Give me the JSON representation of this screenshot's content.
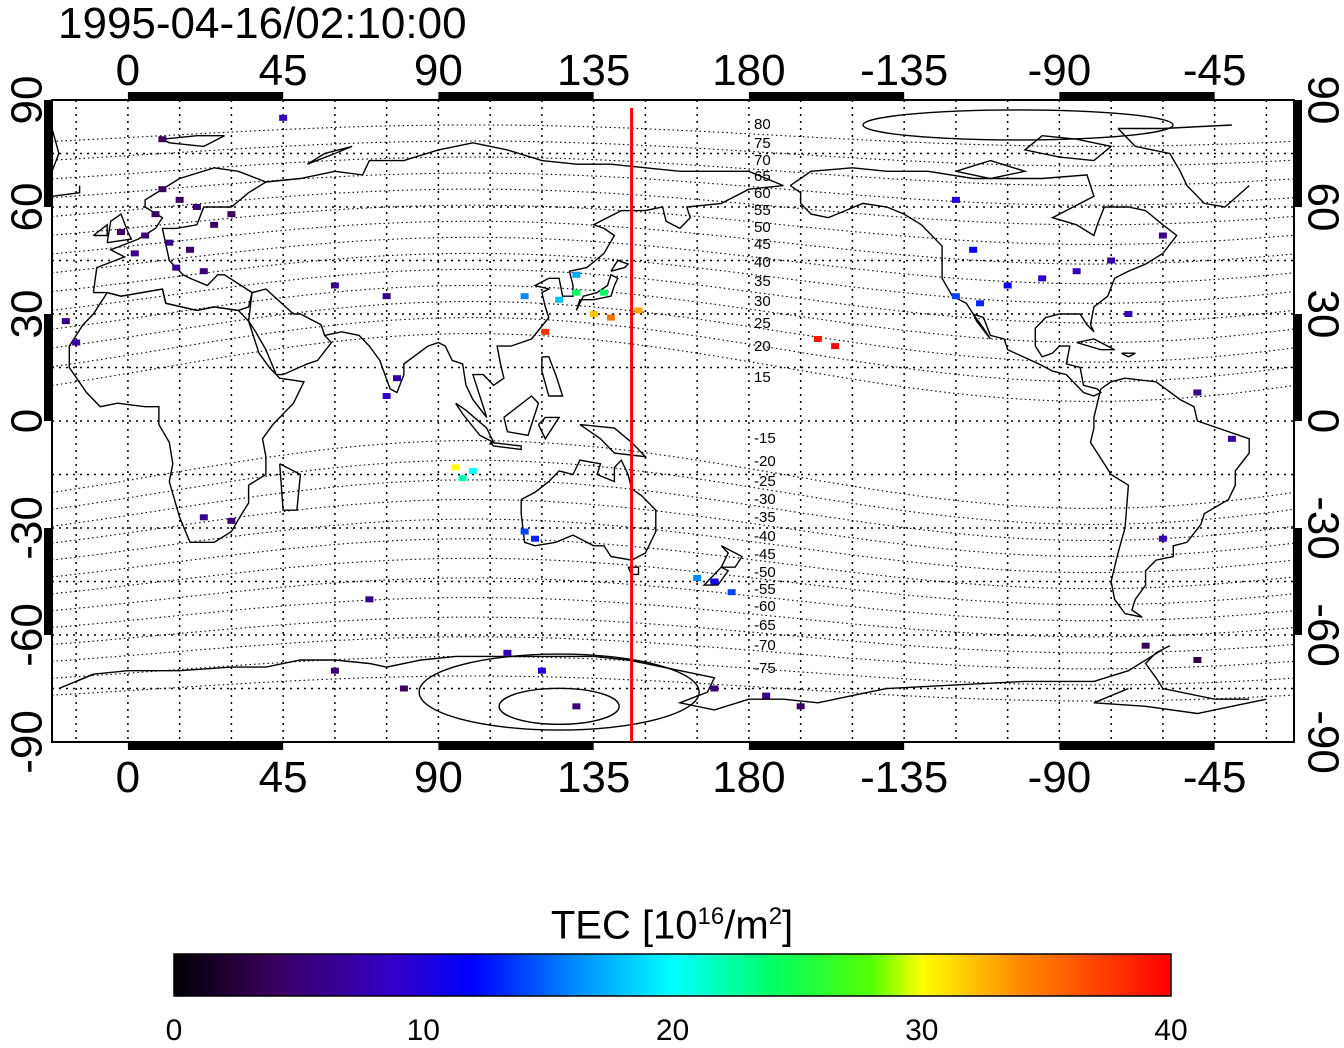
{
  "timestamp": "1995-04-16/02:10:00",
  "map": {
    "lon_ticks_top": [
      "0",
      "45",
      "90",
      "135",
      "180",
      "-135",
      "-90",
      "-45"
    ],
    "lon_ticks_bottom": [
      "0",
      "45",
      "90",
      "135",
      "180",
      "-135",
      "-90",
      "-45"
    ],
    "lat_ticks_left": [
      "90",
      "60",
      "30",
      "0",
      "-30",
      "-60",
      "-90"
    ],
    "lat_ticks_right": [
      "90",
      "60",
      "30",
      "0",
      "-30",
      "-60",
      "-90"
    ],
    "contour_labels_north": [
      "80",
      "75",
      "70",
      "65",
      "60",
      "55",
      "50",
      "45",
      "40",
      "35",
      "30",
      "25",
      "20",
      "15"
    ],
    "contour_labels_south": [
      "-15",
      "-20",
      "-25",
      "-30",
      "-35",
      "-40",
      "-45",
      "-50",
      "-55",
      "-60",
      "-65",
      "-70",
      "-75"
    ],
    "meridian_line_color": "#ff0000",
    "meridian_lon": 146
  },
  "colorbar": {
    "title_prefix": "TEC  [10",
    "title_sup1": "16",
    "title_mid": "/m",
    "title_sup2": "2",
    "title_suffix": "]",
    "ticks": [
      "0",
      "10",
      "20",
      "30",
      "40"
    ],
    "range": [
      0,
      40
    ]
  },
  "chart_data": {
    "type": "scatter",
    "title": "1995-04-16/02:10:00",
    "xlabel": "",
    "ylabel": "",
    "xlim": [
      -22,
      338
    ],
    "ylim": [
      -90,
      90
    ],
    "value_label": "TEC [10^16/m^2]",
    "points": [
      {
        "lon": 10,
        "lat": 65,
        "tec": 4
      },
      {
        "lon": 15,
        "lat": 62,
        "tec": 4
      },
      {
        "lon": 20,
        "lat": 60,
        "tec": 5
      },
      {
        "lon": 8,
        "lat": 58,
        "tec": 4
      },
      {
        "lon": 5,
        "lat": 52,
        "tec": 5
      },
      {
        "lon": 12,
        "lat": 50,
        "tec": 6
      },
      {
        "lon": 18,
        "lat": 48,
        "tec": 5
      },
      {
        "lon": 25,
        "lat": 55,
        "tec": 4
      },
      {
        "lon": -2,
        "lat": 53,
        "tec": 5
      },
      {
        "lon": 2,
        "lat": 47,
        "tec": 6
      },
      {
        "lon": 14,
        "lat": 43,
        "tec": 6
      },
      {
        "lon": 22,
        "lat": 42,
        "tec": 5
      },
      {
        "lon": 30,
        "lat": 58,
        "tec": 4
      },
      {
        "lon": -18,
        "lat": 28,
        "tec": 6
      },
      {
        "lon": -15,
        "lat": 22,
        "tec": 7
      },
      {
        "lon": 10,
        "lat": 79,
        "tec": 4
      },
      {
        "lon": 45,
        "lat": 85,
        "tec": 8
      },
      {
        "lon": 60,
        "lat": 38,
        "tec": 6
      },
      {
        "lon": 75,
        "lat": 35,
        "tec": 6
      },
      {
        "lon": 78,
        "lat": 12,
        "tec": 7
      },
      {
        "lon": 75,
        "lat": 7,
        "tec": 9
      },
      {
        "lon": 115,
        "lat": 35,
        "tec": 16
      },
      {
        "lon": 125,
        "lat": 34,
        "tec": 18
      },
      {
        "lon": 130,
        "lat": 36,
        "tec": 24
      },
      {
        "lon": 138,
        "lat": 36,
        "tec": 24
      },
      {
        "lon": 135,
        "lat": 30,
        "tec": 32
      },
      {
        "lon": 140,
        "lat": 29,
        "tec": 35
      },
      {
        "lon": 148,
        "lat": 31,
        "tec": 33
      },
      {
        "lon": 121,
        "lat": 25,
        "tec": 38
      },
      {
        "lon": 130,
        "lat": 41,
        "tec": 17
      },
      {
        "lon": 95,
        "lat": -13,
        "tec": 30
      },
      {
        "lon": 97,
        "lat": -16,
        "tec": 22
      },
      {
        "lon": 100,
        "lat": -14,
        "tec": 20
      },
      {
        "lon": 115,
        "lat": -31,
        "tec": 14
      },
      {
        "lon": 118,
        "lat": -33,
        "tec": 13
      },
      {
        "lon": 170,
        "lat": -45,
        "tec": 11
      },
      {
        "lon": 175,
        "lat": -48,
        "tec": 14
      },
      {
        "lon": 165,
        "lat": -44,
        "tec": 16
      },
      {
        "lon": 200,
        "lat": 23,
        "tec": 39
      },
      {
        "lon": 205,
        "lat": 21,
        "tec": 40
      },
      {
        "lon": 240,
        "lat": 62,
        "tec": 10
      },
      {
        "lon": 245,
        "lat": 48,
        "tec": 12
      },
      {
        "lon": 240,
        "lat": 35,
        "tec": 14
      },
      {
        "lon": 247,
        "lat": 33,
        "tec": 13
      },
      {
        "lon": 255,
        "lat": 38,
        "tec": 11
      },
      {
        "lon": 265,
        "lat": 40,
        "tec": 9
      },
      {
        "lon": 275,
        "lat": 42,
        "tec": 8
      },
      {
        "lon": 285,
        "lat": 45,
        "tec": 7
      },
      {
        "lon": 290,
        "lat": 30,
        "tec": 8
      },
      {
        "lon": 300,
        "lat": 52,
        "tec": 6
      },
      {
        "lon": 310,
        "lat": 8,
        "tec": 6
      },
      {
        "lon": 320,
        "lat": -5,
        "tec": 7
      },
      {
        "lon": 300,
        "lat": -33,
        "tec": 8
      },
      {
        "lon": 295,
        "lat": -63,
        "tec": 4
      },
      {
        "lon": 310,
        "lat": -67,
        "tec": 3
      },
      {
        "lon": 60,
        "lat": -70,
        "tec": 5
      },
      {
        "lon": 80,
        "lat": -75,
        "tec": 4
      },
      {
        "lon": 110,
        "lat": -65,
        "tec": 8
      },
      {
        "lon": 120,
        "lat": -70,
        "tec": 10
      },
      {
        "lon": 130,
        "lat": -80,
        "tec": 5
      },
      {
        "lon": 170,
        "lat": -75,
        "tec": 5
      },
      {
        "lon": 185,
        "lat": -77,
        "tec": 6
      },
      {
        "lon": 195,
        "lat": -80,
        "tec": 4
      },
      {
        "lon": 30,
        "lat": -28,
        "tec": 5
      },
      {
        "lon": 22,
        "lat": -27,
        "tec": 6
      },
      {
        "lon": 70,
        "lat": -50,
        "tec": 6
      }
    ]
  }
}
